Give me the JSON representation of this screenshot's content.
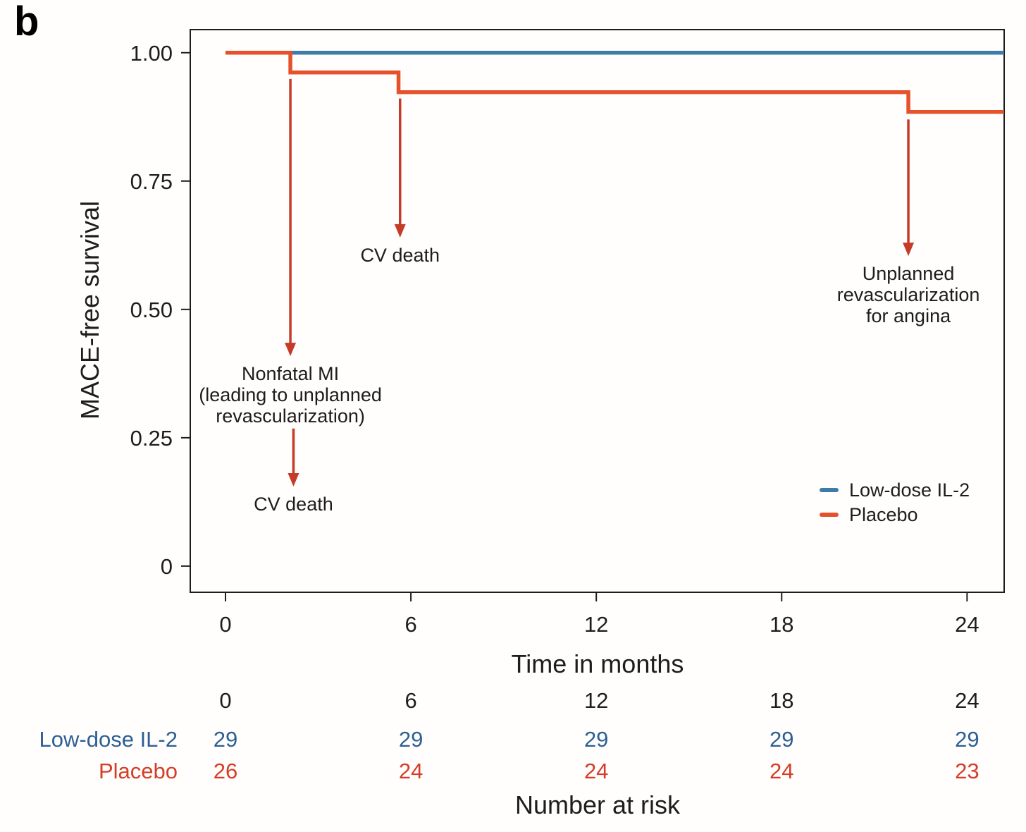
{
  "panel": {
    "label": "b"
  },
  "axes": {
    "y_title": "MACE-free survival",
    "x_title": "Time in months",
    "y_ticks": [
      {
        "value": 1.0,
        "label": "1.00"
      },
      {
        "value": 0.75,
        "label": "0.75"
      },
      {
        "value": 0.5,
        "label": "0.50"
      },
      {
        "value": 0.25,
        "label": "0.25"
      },
      {
        "value": 0.0,
        "label": "0"
      }
    ],
    "x_ticks": [
      {
        "value": 0,
        "label": "0"
      },
      {
        "value": 6,
        "label": "6"
      },
      {
        "value": 12,
        "label": "12"
      },
      {
        "value": 18,
        "label": "18"
      },
      {
        "value": 24,
        "label": "24"
      }
    ]
  },
  "chart_data": {
    "type": "line",
    "subtype": "kaplan-meier-step-curve",
    "title": "",
    "xlabel": "Time in months",
    "ylabel": "MACE-free survival",
    "xlim": [
      -1.14,
      25.2
    ],
    "ylim": [
      -0.051,
      1.045
    ],
    "x_tick_values": [
      0,
      6,
      12,
      18,
      24
    ],
    "y_tick_values": [
      0,
      0.25,
      0.5,
      0.75,
      1.0
    ],
    "grid": false,
    "legend_position": "inside-lower-right",
    "series": [
      {
        "name": "Low-dose IL-2",
        "color": "#3d7ca8",
        "points": [
          [
            0,
            1.0
          ],
          [
            25.2,
            1.0
          ]
        ]
      },
      {
        "name": "Placebo",
        "color": "#e4512b",
        "points": [
          [
            0,
            1.0
          ],
          [
            2.1,
            1.0
          ],
          [
            2.1,
            0.9615
          ],
          [
            5.6,
            0.9615
          ],
          [
            5.6,
            0.9231
          ],
          [
            22.1,
            0.9231
          ],
          [
            22.1,
            0.8846
          ],
          [
            25.2,
            0.8846
          ]
        ]
      }
    ],
    "annotations": [
      {
        "x": 2.1,
        "arrow_from": 0.949,
        "arrow_to": 0.409,
        "lines": [
          "Nonfatal MI",
          "(leading to unplanned",
          "revascularization)"
        ]
      },
      {
        "x": 5.65,
        "arrow_from": 0.911,
        "arrow_to": 0.64,
        "lines": [
          "CV death"
        ]
      },
      {
        "x": 2.2,
        "arrow_from": 0.268,
        "arrow_to": 0.155,
        "lines": [
          "CV death"
        ]
      },
      {
        "x": 22.1,
        "arrow_from": 0.87,
        "arrow_to": 0.604,
        "lines": [
          "Unplanned",
          "revascularization",
          "for angina"
        ]
      }
    ]
  },
  "legend": {
    "items": [
      {
        "label": "Low-dose IL-2",
        "color": "#3d7ca8"
      },
      {
        "label": "Placebo",
        "color": "#e4512b"
      }
    ]
  },
  "risk_table": {
    "title": "Number at risk",
    "column_labels": [
      "0",
      "6",
      "12",
      "18",
      "24"
    ],
    "column_values": [
      0,
      6,
      12,
      18,
      24
    ],
    "rows": [
      {
        "label": "Low-dose IL-2",
        "color": "#2d5f94",
        "values": [
          "29",
          "29",
          "29",
          "29",
          "29"
        ]
      },
      {
        "label": "Placebo",
        "color": "#d63c28",
        "values": [
          "26",
          "24",
          "24",
          "24",
          "23"
        ]
      }
    ]
  },
  "colors": {
    "annotation_arrow": "#c63b28",
    "axis": "#1d1d1b",
    "text": "#1d1d1b"
  }
}
